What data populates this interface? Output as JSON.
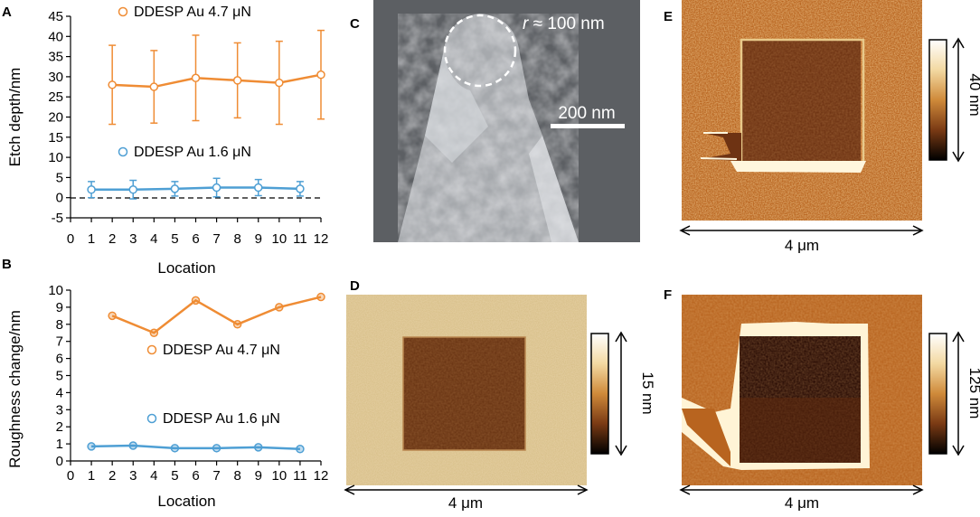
{
  "panels": {
    "A": "A",
    "B": "B",
    "C": "C",
    "D": "D",
    "E": "E",
    "F": "F"
  },
  "chart_data": [
    {
      "type": "line",
      "panel": "A",
      "xlabel": "Location",
      "ylabel": "Etch depth/nm",
      "xlim": [
        0,
        12
      ],
      "ylim": [
        -5,
        45
      ],
      "x_ticks": [
        "0",
        "1",
        "2",
        "3",
        "4",
        "5",
        "6",
        "7",
        "8",
        "9",
        "10",
        "11",
        "12"
      ],
      "y_ticks": [
        "-5",
        "0",
        "5",
        "10",
        "15",
        "20",
        "25",
        "30",
        "35",
        "40",
        "45"
      ],
      "zero_line": "dashed",
      "series": [
        {
          "name": "DDESP Au 4.7 μN",
          "color": "#ef8c34",
          "x": [
            2,
            4,
            6,
            8,
            10,
            12
          ],
          "values": [
            28.0,
            27.5,
            29.7,
            29.1,
            28.5,
            30.5
          ],
          "error": [
            9.8,
            9.0,
            10.6,
            9.3,
            10.3,
            11.0
          ]
        },
        {
          "name": "DDESP Au 1.6 μN",
          "color": "#4e9fd4",
          "x": [
            1,
            3,
            5,
            7,
            9,
            11
          ],
          "values": [
            2.0,
            2.0,
            2.2,
            2.5,
            2.5,
            2.2
          ],
          "error": [
            2.0,
            2.3,
            1.8,
            2.3,
            2.0,
            1.8
          ]
        }
      ]
    },
    {
      "type": "line",
      "panel": "B",
      "xlabel": "Location",
      "ylabel": "Roughness change/nm",
      "xlim": [
        0,
        12
      ],
      "ylim": [
        0,
        10
      ],
      "x_ticks": [
        "0",
        "1",
        "2",
        "3",
        "4",
        "5",
        "6",
        "7",
        "8",
        "9",
        "10",
        "11",
        "12"
      ],
      "y_ticks": [
        "0",
        "1",
        "2",
        "3",
        "4",
        "5",
        "6",
        "7",
        "8",
        "9",
        "10"
      ],
      "series": [
        {
          "name": "DDESP Au 4.7 μN",
          "color": "#ef8c34",
          "x": [
            2,
            4,
            6,
            8,
            10,
            12
          ],
          "values": [
            8.5,
            7.5,
            9.4,
            8.0,
            9.0,
            9.6
          ]
        },
        {
          "name": "DDESP Au 1.6 μN",
          "color": "#4e9fd4",
          "x": [
            1,
            3,
            5,
            7,
            9,
            11
          ],
          "values": [
            0.85,
            0.9,
            0.75,
            0.75,
            0.8,
            0.7
          ]
        }
      ]
    }
  ],
  "images": {
    "C": {
      "radius_prefix": "r",
      "radius_text": " ≈ 100 nm",
      "scalebar_label": "200 nm"
    },
    "D": {
      "colorbar_label": "15 nm",
      "width_label": "4 μm"
    },
    "E": {
      "colorbar_label": "40 nm",
      "width_label": "4 μm"
    },
    "F": {
      "colorbar_label": "125 nm",
      "width_label": "4 μm"
    }
  }
}
